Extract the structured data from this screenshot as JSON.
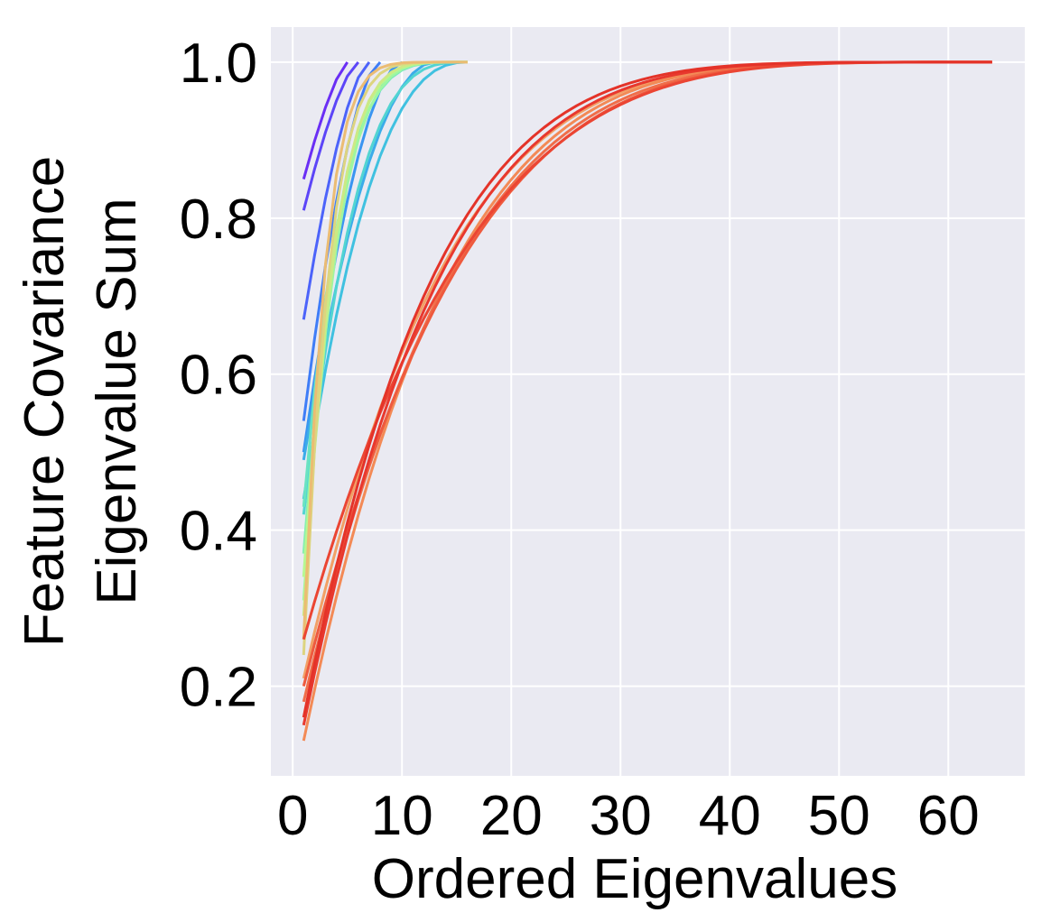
{
  "chart_data": {
    "type": "line",
    "xlabel": "Ordered Eigenvalues",
    "ylabel_lines": [
      "Feature Covariance",
      "Eigenvalue Sum"
    ],
    "xlim": [
      -2,
      67
    ],
    "ylim": [
      0.085,
      1.045
    ],
    "xticks": [
      0,
      10,
      20,
      30,
      40,
      50,
      60
    ],
    "xtick_labels": [
      "0",
      "10",
      "20",
      "30",
      "40",
      "50",
      "60"
    ],
    "yticks": [
      0.2,
      0.4,
      0.6,
      0.8,
      1.0
    ],
    "ytick_labels": [
      "0.2",
      "0.4",
      "0.6",
      "0.8",
      "1.0"
    ],
    "grid": true,
    "colormap": "rainbow",
    "colors": {
      "plot_background": "#EAEAF2",
      "grid": "#FFFFFF",
      "text": "#000000"
    },
    "series": [
      {
        "color": "#6A2EF5",
        "n": 5,
        "v1": 0.85,
        "p": 1.6
      },
      {
        "color": "#5C45F8",
        "n": 6,
        "v1": 0.81,
        "p": 1.5
      },
      {
        "color": "#4C63FA",
        "n": 7,
        "v1": 0.67,
        "p": 1.4
      },
      {
        "color": "#3F7DF7",
        "n": 8,
        "v1": 0.54,
        "p": 1.3
      },
      {
        "color": "#3A95F1",
        "n": 10,
        "v1": 0.5,
        "p": 1.25
      },
      {
        "color": "#3BACE9",
        "n": 13,
        "v1": 0.49,
        "p": 1.1
      },
      {
        "color": "#40C1E0",
        "n": 16,
        "v1": 0.44,
        "p": 0.9
      },
      {
        "color": "#52D4D2",
        "n": 16,
        "v1": 0.42,
        "p": 0.7
      },
      {
        "color": "#6AE3C1",
        "n": 16,
        "v1": 0.43,
        "p": 0.5
      },
      {
        "color": "#86EFB0",
        "n": 16,
        "v1": 0.37,
        "p": 0.48
      },
      {
        "color": "#9FF6A0",
        "n": 16,
        "v1": 0.31,
        "p": 0.46
      },
      {
        "color": "#B6F892",
        "n": 16,
        "v1": 0.34,
        "p": 0.44
      },
      {
        "color": "#CCE985",
        "n": 16,
        "v1": 0.29,
        "p": 0.42
      },
      {
        "color": "#DDD47F",
        "n": 16,
        "v1": 0.24,
        "p": 0.35
      },
      {
        "color": "#EBBC73",
        "n": 16,
        "v1": 0.26,
        "p": 0.3
      },
      {
        "color": "#F2A066",
        "n": 64,
        "v1": 0.21,
        "p": 0.45
      },
      {
        "color": "#F38A56",
        "n": 64,
        "v1": 0.13,
        "p": 0.45
      },
      {
        "color": "#F06E4A",
        "n": 64,
        "v1": 0.18,
        "p": 0.48
      },
      {
        "color": "#EE5A3E",
        "n": 64,
        "v1": 0.2,
        "p": 0.5
      },
      {
        "color": "#EB4533",
        "n": 64,
        "v1": 0.26,
        "p": 0.52
      },
      {
        "color": "#E8382E",
        "n": 64,
        "v1": 0.15,
        "p": 0.43
      },
      {
        "color": "#E43329",
        "n": 64,
        "v1": 0.16,
        "p": 0.41
      }
    ]
  }
}
